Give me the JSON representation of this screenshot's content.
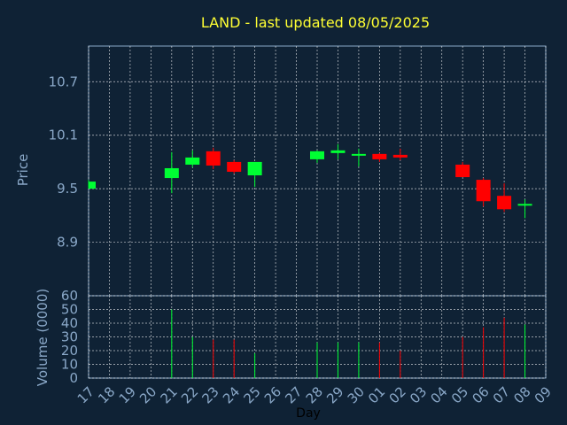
{
  "chart_data": {
    "type": "candlestick",
    "title": "LAND - last updated 08/05/2025",
    "price_panel": {
      "ylabel": "Price",
      "yticks": [
        "8.9",
        "9.5",
        "10.1",
        "10.7"
      ],
      "ylim": [
        8.3,
        11.1
      ]
    },
    "volume_panel": {
      "ylabel": "Volume (0000)",
      "yticks": [
        "0",
        "10",
        "20",
        "30",
        "40",
        "50",
        "60"
      ],
      "ylim": [
        0,
        60
      ]
    },
    "xlabel": "Day",
    "x_labels": [
      "17",
      "18",
      "19",
      "20",
      "21",
      "22",
      "23",
      "24",
      "25",
      "26",
      "27",
      "28",
      "29",
      "30",
      "01",
      "02",
      "03",
      "04",
      "05",
      "06",
      "07",
      "08",
      "09"
    ],
    "colors": {
      "up": "#00ff33",
      "down": "#ff0000",
      "grid": "#ffffff",
      "axis": "#8aa8c8",
      "title": "#ffff33",
      "background": "#0f2235"
    },
    "candles": [
      {
        "day": "17",
        "open": 9.5,
        "high": 9.6,
        "low": 9.5,
        "close": 9.58,
        "volume": 0
      },
      {
        "day": "21",
        "open": 9.62,
        "high": 9.91,
        "low": 9.45,
        "close": 9.73,
        "volume": 50
      },
      {
        "day": "22",
        "open": 9.77,
        "high": 9.93,
        "low": 9.74,
        "close": 9.85,
        "volume": 30
      },
      {
        "day": "23",
        "open": 9.92,
        "high": 9.96,
        "low": 9.72,
        "close": 9.76,
        "volume": 28
      },
      {
        "day": "24",
        "open": 9.8,
        "high": 9.82,
        "low": 9.67,
        "close": 9.69,
        "volume": 28
      },
      {
        "day": "25",
        "open": 9.65,
        "high": 9.8,
        "low": 9.52,
        "close": 9.8,
        "volume": 18
      },
      {
        "day": "28",
        "open": 9.83,
        "high": 9.93,
        "low": 9.79,
        "close": 9.92,
        "volume": 26
      },
      {
        "day": "29",
        "open": 9.9,
        "high": 10.0,
        "low": 9.83,
        "close": 9.93,
        "volume": 26
      },
      {
        "day": "30",
        "open": 9.88,
        "high": 9.95,
        "low": 9.75,
        "close": 9.89,
        "volume": 26
      },
      {
        "day": "01",
        "open": 9.89,
        "high": 9.9,
        "low": 9.8,
        "close": 9.83,
        "volume": 26
      },
      {
        "day": "02",
        "open": 9.88,
        "high": 9.95,
        "low": 9.82,
        "close": 9.85,
        "volume": 20
      },
      {
        "day": "05",
        "open": 9.77,
        "high": 9.8,
        "low": 9.63,
        "close": 9.63,
        "volume": 30
      },
      {
        "day": "06",
        "open": 9.6,
        "high": 9.62,
        "low": 9.3,
        "close": 9.36,
        "volume": 37
      },
      {
        "day": "07",
        "open": 9.42,
        "high": 9.56,
        "low": 9.24,
        "close": 9.27,
        "volume": 44
      },
      {
        "day": "08",
        "open": 9.33,
        "high": 9.38,
        "low": 9.17,
        "close": 9.33,
        "volume": 39
      }
    ]
  }
}
